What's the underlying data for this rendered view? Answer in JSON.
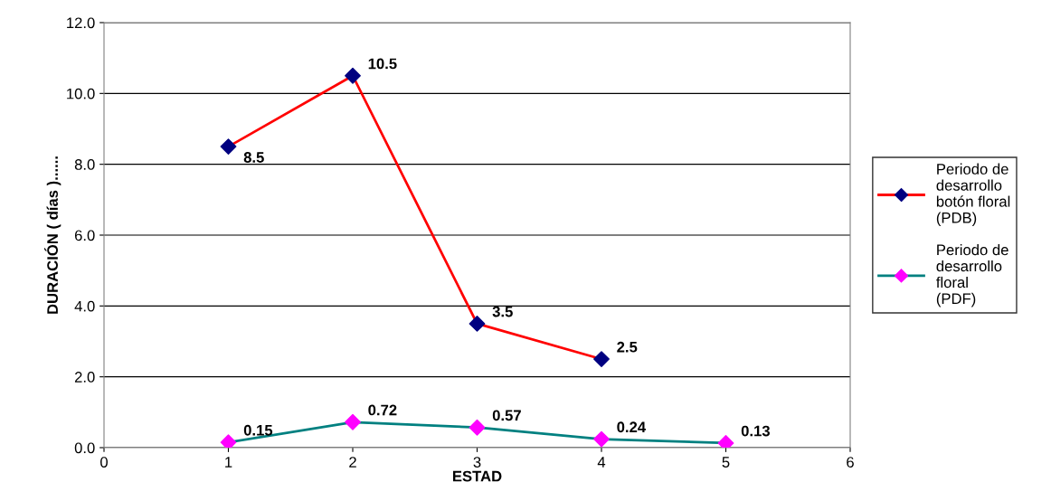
{
  "chart_data": {
    "type": "line",
    "xlabel": "ESTAD",
    "ylabel": "DURACIÓN ( días )......",
    "xlim": [
      0,
      6
    ],
    "xticks": [
      0,
      1,
      2,
      3,
      4,
      5,
      6
    ],
    "ylim": [
      0,
      12
    ],
    "yticks": [
      {
        "value": 0,
        "label": "0.0"
      },
      {
        "value": 2,
        "label": "2.0"
      },
      {
        "value": 4,
        "label": "4.0"
      },
      {
        "value": 6,
        "label": "6.0"
      },
      {
        "value": 8,
        "label": "8.0"
      },
      {
        "value": 10,
        "label": "10.0"
      },
      {
        "value": 12,
        "label": "12.0"
      }
    ],
    "grid": "y",
    "legend": "right",
    "marker": "diamond",
    "data_labels": true,
    "series": [
      {
        "name": "Periodo de\ndesarrollo\nbotón floral\n(PDB)",
        "color": "#ff0000",
        "colors": [
          "#000080",
          "#000080",
          "#000080",
          "#000080"
        ],
        "x": [
          1,
          2,
          3,
          4
        ],
        "values": [
          8.5,
          10.5,
          3.5,
          2.5
        ]
      },
      {
        "name": "Periodo de\ndesarrollo\nfloral\n(PDF)",
        "color": "#008080",
        "colors": [
          "#ff00ff",
          "#ff00ff",
          "#ff00ff",
          "#ff00ff",
          "#ff00ff"
        ],
        "x": [
          1,
          2,
          3,
          4,
          5
        ],
        "values": [
          0.15,
          0.72,
          0.57,
          0.24,
          0.13
        ]
      }
    ]
  }
}
